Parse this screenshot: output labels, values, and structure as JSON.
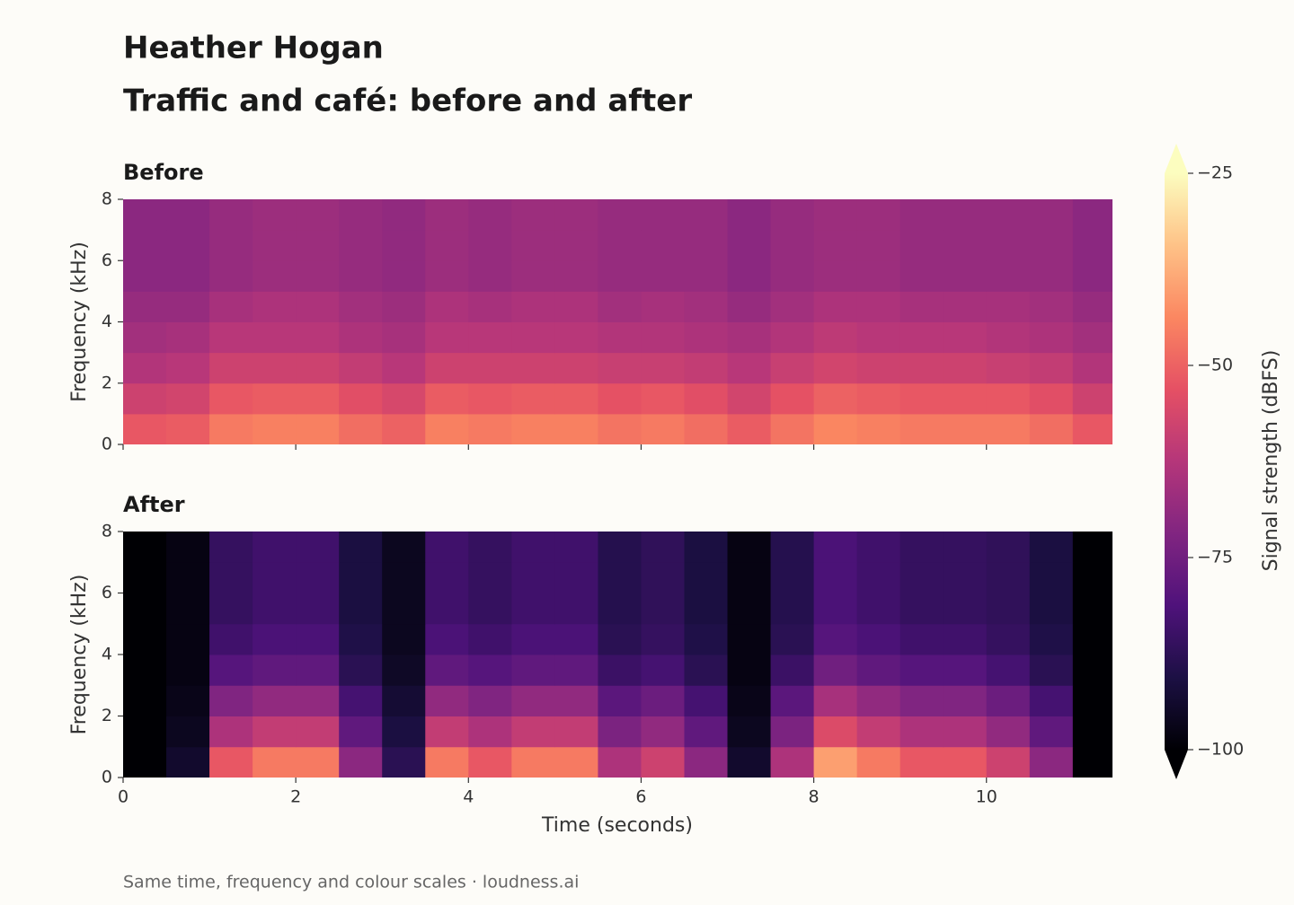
{
  "chart_data": {
    "type": "spectrogram",
    "title": "Heather Hogan",
    "subtitle": "Traffic and café: before and after",
    "footer": "Same time, frequency and colour scales  ·  loudness.ai",
    "xlabel": "Time (seconds)",
    "ylabel": "Frequency (kHz)",
    "xlim": [
      0,
      11.46
    ],
    "xticks": [
      0,
      2,
      4,
      6,
      8,
      10
    ],
    "ylim": [
      0,
      8
    ],
    "yticks": [
      0,
      2,
      4,
      6,
      8
    ],
    "xbins": [
      0,
      0.5,
      1,
      1.5,
      2,
      2.5,
      3,
      3.5,
      4,
      4.5,
      5,
      5.5,
      6,
      6.5,
      7,
      7.5,
      8,
      8.5,
      9,
      9.5,
      10,
      10.5,
      11,
      11.5
    ],
    "ybins": [
      0,
      1,
      2,
      3,
      4,
      5,
      6,
      7,
      8
    ],
    "colorbar": {
      "label": "Signal strength (dBFS)",
      "lim": [
        -100,
        -25
      ],
      "ticks": [
        {
          "value": -25,
          "label": "−25"
        },
        {
          "value": -50,
          "label": "−50"
        },
        {
          "value": -75,
          "label": "−75"
        },
        {
          "value": -100,
          "label": "−100"
        }
      ],
      "colormap": [
        "#000004",
        "#1c1044",
        "#4f127b",
        "#812581",
        "#b5367a",
        "#e55064",
        "#fb8761",
        "#fec287",
        "#fcfdbf"
      ]
    },
    "panels": [
      {
        "title": "Before",
        "values": [
          [
            -52,
            -51,
            -46,
            -45,
            -45,
            -48,
            -50,
            -45,
            -46,
            -45,
            -45,
            -47,
            -46,
            -48,
            -51,
            -47,
            -44,
            -45,
            -46,
            -46,
            -46,
            -48,
            -52
          ],
          [
            -58,
            -57,
            -52,
            -51,
            -51,
            -54,
            -56,
            -51,
            -52,
            -51,
            -51,
            -53,
            -52,
            -54,
            -57,
            -53,
            -50,
            -51,
            -52,
            -52,
            -52,
            -54,
            -58
          ],
          [
            -63,
            -62,
            -58,
            -58,
            -58,
            -60,
            -62,
            -58,
            -58,
            -58,
            -58,
            -59,
            -59,
            -60,
            -62,
            -59,
            -57,
            -58,
            -58,
            -58,
            -59,
            -60,
            -63
          ],
          [
            -66,
            -65,
            -62,
            -62,
            -62,
            -64,
            -65,
            -62,
            -62,
            -62,
            -62,
            -63,
            -63,
            -64,
            -65,
            -63,
            -61,
            -62,
            -62,
            -62,
            -63,
            -64,
            -66
          ],
          [
            -68,
            -68,
            -65,
            -64,
            -64,
            -66,
            -67,
            -64,
            -65,
            -64,
            -64,
            -66,
            -65,
            -66,
            -68,
            -66,
            -64,
            -64,
            -65,
            -65,
            -65,
            -66,
            -68
          ],
          [
            -70,
            -70,
            -68,
            -67,
            -67,
            -68,
            -69,
            -67,
            -68,
            -67,
            -67,
            -68,
            -68,
            -68,
            -70,
            -68,
            -67,
            -67,
            -68,
            -68,
            -68,
            -68,
            -70
          ],
          [
            -70,
            -70,
            -68,
            -67,
            -67,
            -68,
            -69,
            -67,
            -68,
            -67,
            -67,
            -68,
            -68,
            -68,
            -70,
            -68,
            -67,
            -67,
            -68,
            -68,
            -68,
            -68,
            -70
          ],
          [
            -70,
            -70,
            -68,
            -67,
            -67,
            -68,
            -69,
            -67,
            -68,
            -67,
            -67,
            -68,
            -68,
            -68,
            -70,
            -68,
            -67,
            -67,
            -68,
            -68,
            -68,
            -68,
            -70
          ]
        ]
      },
      {
        "title": "After",
        "values": [
          [
            -100,
            -94,
            -52,
            -46,
            -46,
            -70,
            -88,
            -46,
            -52,
            -46,
            -46,
            -64,
            -58,
            -70,
            -94,
            -64,
            -40,
            -46,
            -52,
            -52,
            -58,
            -70,
            -100
          ],
          [
            -100,
            -96,
            -64,
            -60,
            -60,
            -78,
            -91,
            -60,
            -64,
            -60,
            -60,
            -73,
            -69,
            -78,
            -96,
            -73,
            -55,
            -60,
            -64,
            -64,
            -69,
            -78,
            -100
          ],
          [
            -100,
            -97,
            -72,
            -69,
            -69,
            -83,
            -93,
            -69,
            -72,
            -69,
            -69,
            -79,
            -76,
            -83,
            -97,
            -79,
            -65,
            -69,
            -72,
            -72,
            -76,
            -83,
            -100
          ],
          [
            -100,
            -98,
            -80,
            -78,
            -78,
            -88,
            -95,
            -78,
            -80,
            -78,
            -78,
            -85,
            -83,
            -88,
            -98,
            -85,
            -75,
            -78,
            -80,
            -80,
            -83,
            -88,
            -100
          ],
          [
            -100,
            -98,
            -84,
            -82,
            -82,
            -90,
            -96,
            -82,
            -84,
            -82,
            -82,
            -88,
            -86,
            -90,
            -98,
            -88,
            -80,
            -82,
            -84,
            -84,
            -86,
            -90,
            -100
          ],
          [
            -100,
            -98,
            -86,
            -84,
            -84,
            -91,
            -96,
            -84,
            -86,
            -84,
            -84,
            -89,
            -87,
            -91,
            -98,
            -89,
            -82,
            -84,
            -86,
            -86,
            -87,
            -91,
            -100
          ],
          [
            -100,
            -98,
            -86,
            -84,
            -84,
            -91,
            -96,
            -84,
            -86,
            -84,
            -84,
            -89,
            -87,
            -91,
            -98,
            -89,
            -82,
            -84,
            -86,
            -86,
            -87,
            -91,
            -100
          ],
          [
            -100,
            -98,
            -86,
            -84,
            -84,
            -91,
            -96,
            -84,
            -86,
            -84,
            -84,
            -89,
            -87,
            -91,
            -98,
            -89,
            -82,
            -84,
            -86,
            -86,
            -87,
            -91,
            -100
          ]
        ]
      }
    ]
  }
}
